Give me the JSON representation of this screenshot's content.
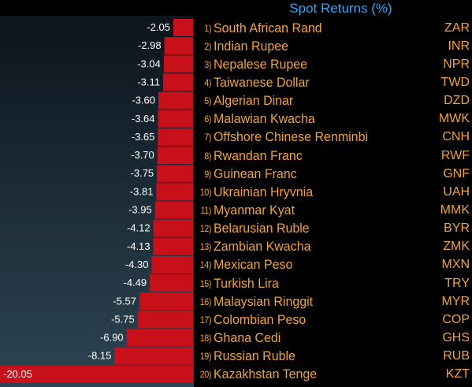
{
  "chart_data": {
    "type": "bar",
    "orientation": "horizontal",
    "title": "Spot Returns (%)",
    "bar_color": "#c8101a",
    "label_color": "#f0a33b",
    "title_color": "#2aa7ff",
    "background": "#000000",
    "panel_gradient": [
      "#0c141c",
      "#2d4553"
    ],
    "rows": [
      {
        "rank": "1)",
        "name": "South African Rand",
        "code": "ZAR",
        "value": -2.05,
        "value_label": "-2.05"
      },
      {
        "rank": "2)",
        "name": "Indian Rupee",
        "code": "INR",
        "value": -2.98,
        "value_label": "-2.98"
      },
      {
        "rank": "3)",
        "name": "Nepalese Rupee",
        "code": "NPR",
        "value": -3.04,
        "value_label": "-3.04"
      },
      {
        "rank": "4)",
        "name": "Taiwanese Dollar",
        "code": "TWD",
        "value": -3.11,
        "value_label": "-3.11"
      },
      {
        "rank": "5)",
        "name": "Algerian Dinar",
        "code": "DZD",
        "value": -3.6,
        "value_label": "-3.60"
      },
      {
        "rank": "6)",
        "name": "Malawian Kwacha",
        "code": "MWK",
        "value": -3.64,
        "value_label": "-3.64"
      },
      {
        "rank": "7)",
        "name": "Offshore Chinese Renminbi",
        "code": "CNH",
        "value": -3.65,
        "value_label": "-3.65"
      },
      {
        "rank": "8)",
        "name": "Rwandan Franc",
        "code": "RWF",
        "value": -3.7,
        "value_label": "-3.70"
      },
      {
        "rank": "9)",
        "name": "Guinean Franc",
        "code": "GNF",
        "value": -3.75,
        "value_label": "-3.75"
      },
      {
        "rank": "10)",
        "name": "Ukrainian Hryvnia",
        "code": "UAH",
        "value": -3.81,
        "value_label": "-3.81"
      },
      {
        "rank": "11)",
        "name": "Myanmar Kyat",
        "code": "MMK",
        "value": -3.95,
        "value_label": "-3.95"
      },
      {
        "rank": "12)",
        "name": "Belarusian Ruble",
        "code": "BYR",
        "value": -4.12,
        "value_label": "-4.12"
      },
      {
        "rank": "13)",
        "name": "Zambian Kwacha",
        "code": "ZMK",
        "value": -4.13,
        "value_label": "-4.13"
      },
      {
        "rank": "14)",
        "name": "Mexican Peso",
        "code": "MXN",
        "value": -4.3,
        "value_label": "-4.30"
      },
      {
        "rank": "15)",
        "name": "Turkish Lira",
        "code": "TRY",
        "value": -4.49,
        "value_label": "-4.49"
      },
      {
        "rank": "16)",
        "name": "Malaysian Ringgit",
        "code": "MYR",
        "value": -5.57,
        "value_label": "-5.57"
      },
      {
        "rank": "17)",
        "name": "Colombian Peso",
        "code": "COP",
        "value": -5.75,
        "value_label": "-5.75"
      },
      {
        "rank": "18)",
        "name": "Ghana Cedi",
        "code": "GHS",
        "value": -6.9,
        "value_label": "-6.90"
      },
      {
        "rank": "19)",
        "name": "Russian Ruble",
        "code": "RUB",
        "value": -8.15,
        "value_label": "-8.15"
      },
      {
        "rank": "20)",
        "name": "Kazakhstan Tenge",
        "code": "KZT",
        "value": -20.05,
        "value_label": "-20.05"
      }
    ]
  }
}
